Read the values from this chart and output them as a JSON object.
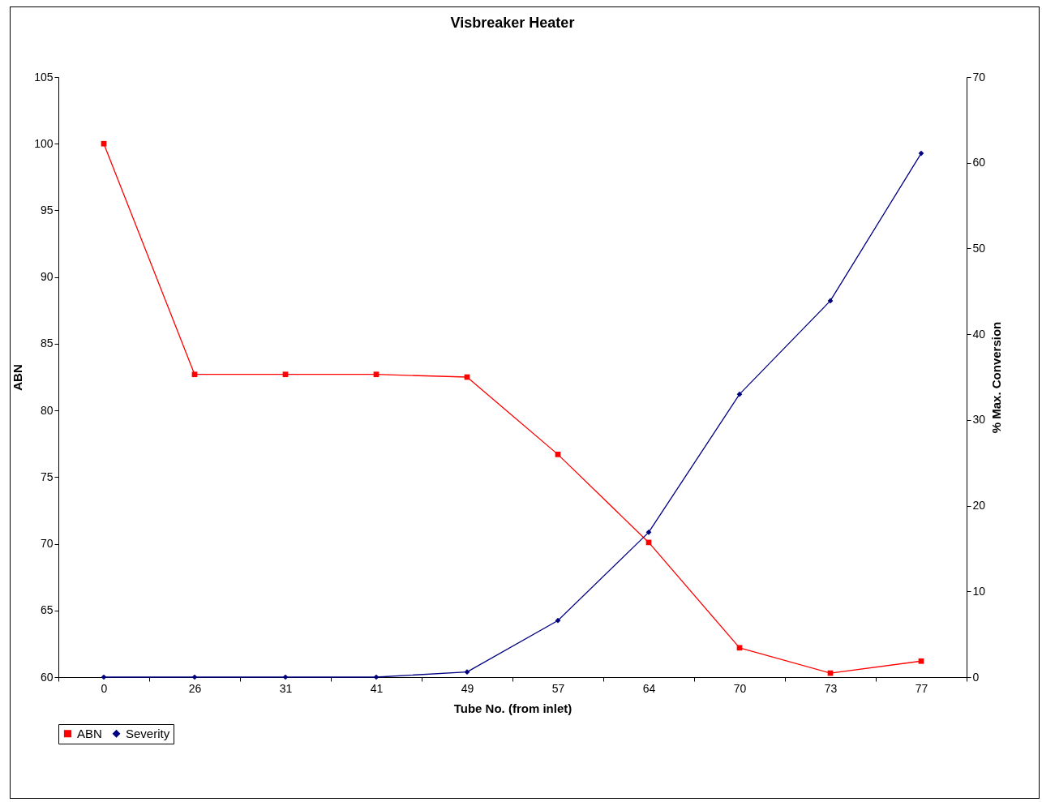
{
  "chart_data": {
    "type": "line",
    "title": "Visbreaker Heater",
    "xlabel": "Tube No. (from inlet)",
    "ylabel": "ABN",
    "y2label": "% Max. Conversion",
    "categories": [
      "0",
      "26",
      "31",
      "41",
      "49",
      "57",
      "64",
      "70",
      "73",
      "77"
    ],
    "series": [
      {
        "name": "ABN",
        "color": "#ff0000",
        "marker": "square",
        "values": [
          100,
          82.7,
          82.7,
          82.7,
          82.5,
          76.7,
          70.1,
          62.2,
          60.3,
          61.2
        ]
      },
      {
        "name": "Severity",
        "color": "#000080",
        "marker": "diamond",
        "axis": "y2",
        "values": [
          0,
          0,
          0,
          0,
          0.6,
          6.6,
          16.9,
          33.0,
          43.9,
          61.1
        ]
      }
    ],
    "ylim": [
      60,
      105
    ],
    "yticks": [
      60,
      65,
      70,
      75,
      80,
      85,
      90,
      95,
      100,
      105
    ],
    "y2lim": [
      0,
      70
    ],
    "y2ticks": [
      0,
      10,
      20,
      30,
      40,
      50,
      60,
      70
    ],
    "grid": false,
    "legend": "bottom"
  }
}
